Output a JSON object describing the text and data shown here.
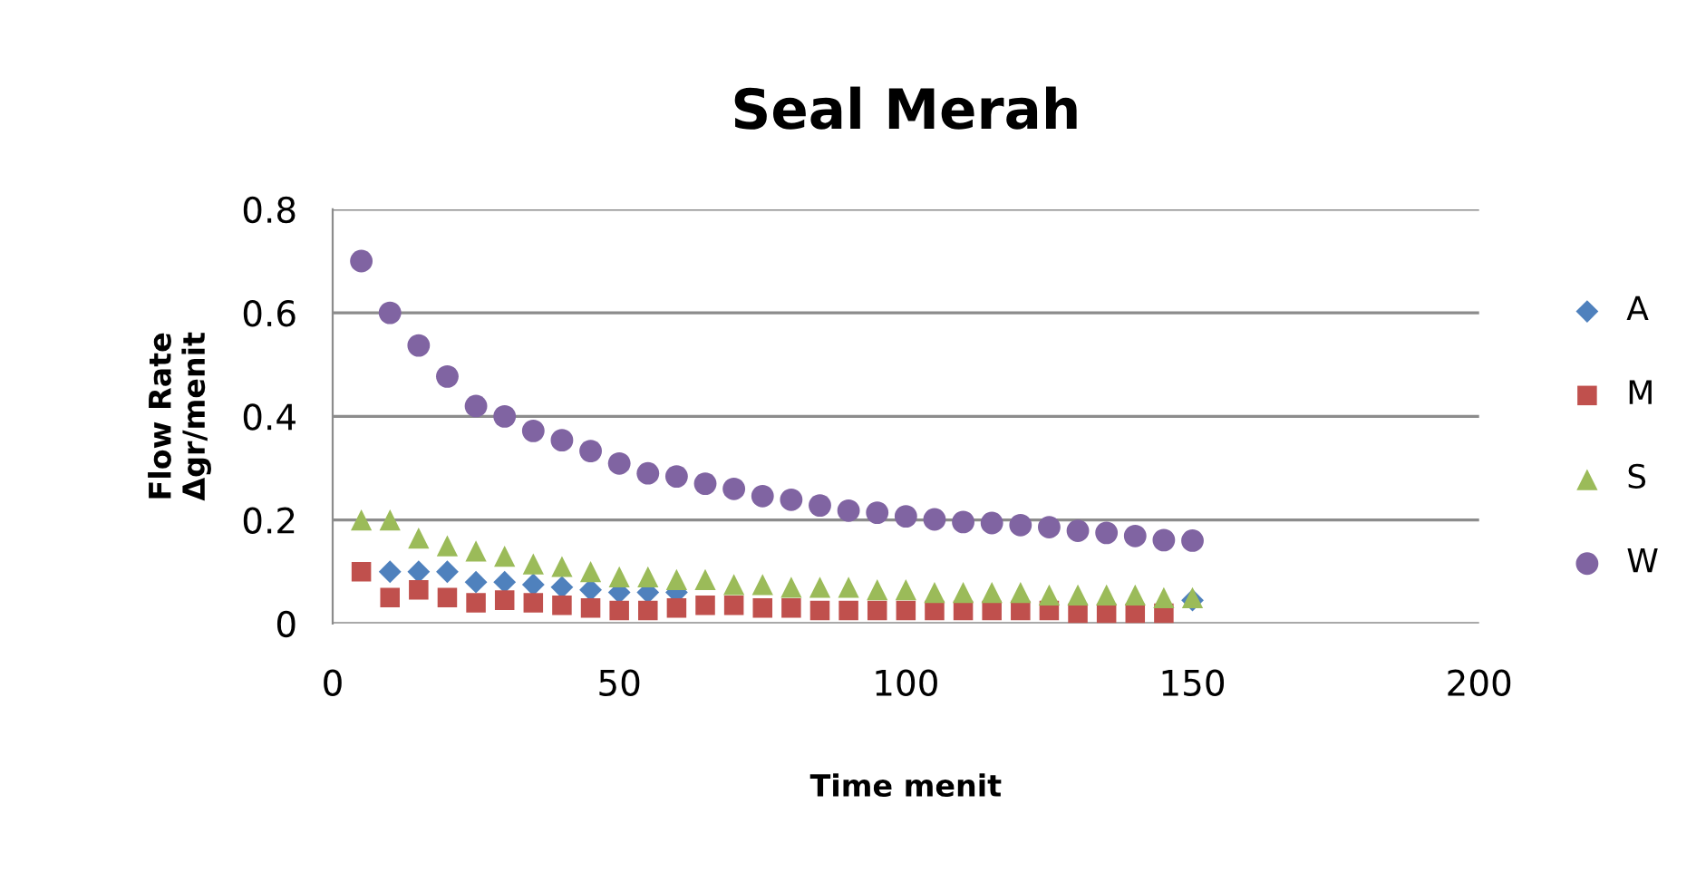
{
  "chart_data": {
    "type": "scatter",
    "title": "Seal Merah",
    "xlabel": "Time menit",
    "ylabel": "Flow Rate\nΔgr/menit",
    "xlim": [
      0,
      200
    ],
    "xticks": [
      0,
      50,
      100,
      150,
      200
    ],
    "ylim": [
      0,
      0.8
    ],
    "yticks": [
      0,
      0.2,
      0.4,
      0.6,
      0.8
    ],
    "grid": "y",
    "legend": "right",
    "series": [
      {
        "name": "A",
        "color": "#4f81bd",
        "marker": "diamond",
        "x": [
          10,
          15,
          20,
          25,
          30,
          35,
          40,
          45,
          50,
          55,
          60,
          65,
          70,
          75,
          80,
          85,
          90,
          95,
          100,
          105,
          110,
          115,
          120,
          125,
          130,
          135,
          140,
          145,
          150
        ],
        "values": [
          0.1,
          0.1,
          0.1,
          0.08,
          0.08,
          0.075,
          0.07,
          0.065,
          0.06,
          0.06,
          0.06,
          null,
          null,
          null,
          null,
          null,
          null,
          null,
          null,
          null,
          null,
          null,
          null,
          null,
          null,
          null,
          null,
          null,
          0.045
        ]
      },
      {
        "name": "M",
        "color": "#c0504d",
        "marker": "square",
        "x": [
          5,
          10,
          15,
          20,
          25,
          30,
          35,
          40,
          45,
          50,
          55,
          60,
          65,
          70,
          75,
          80,
          85,
          90,
          95,
          100,
          105,
          110,
          115,
          120,
          125,
          130,
          135,
          140,
          145
        ],
        "values": [
          0.1,
          0.05,
          0.065,
          0.05,
          0.04,
          0.045,
          0.04,
          0.035,
          0.03,
          0.025,
          0.025,
          0.03,
          0.035,
          0.035,
          0.03,
          0.03,
          0.025,
          0.025,
          0.025,
          0.025,
          0.025,
          0.025,
          0.025,
          0.025,
          0.025,
          0.02,
          0.02,
          0.02,
          0.02
        ]
      },
      {
        "name": "S",
        "color": "#9bbb59",
        "marker": "triangle",
        "x": [
          5,
          10,
          15,
          20,
          25,
          30,
          35,
          40,
          45,
          50,
          55,
          60,
          65,
          70,
          75,
          80,
          85,
          90,
          95,
          100,
          105,
          110,
          115,
          120,
          125,
          130,
          135,
          140,
          145,
          150
        ],
        "values": [
          0.2,
          0.2,
          0.165,
          0.15,
          0.14,
          0.13,
          0.115,
          0.11,
          0.1,
          0.09,
          0.09,
          0.085,
          0.085,
          0.075,
          0.075,
          0.07,
          0.07,
          0.07,
          0.065,
          0.065,
          0.06,
          0.06,
          0.06,
          0.06,
          0.055,
          0.055,
          0.055,
          0.055,
          0.05,
          0.05
        ]
      },
      {
        "name": "W",
        "color": "#8064a2",
        "marker": "circle",
        "x": [
          5,
          10,
          15,
          20,
          25,
          30,
          35,
          40,
          45,
          50,
          55,
          60,
          65,
          70,
          75,
          80,
          85,
          90,
          95,
          100,
          105,
          110,
          115,
          120,
          125,
          130,
          135,
          140,
          145,
          150
        ],
        "values": [
          0.7,
          0.6,
          0.537,
          0.477,
          0.42,
          0.4,
          0.372,
          0.354,
          0.333,
          0.309,
          0.29,
          0.284,
          0.27,
          0.26,
          0.246,
          0.239,
          0.228,
          0.218,
          0.214,
          0.207,
          0.201,
          0.196,
          0.194,
          0.19,
          0.186,
          0.179,
          0.175,
          0.169,
          0.161,
          0.16
        ]
      }
    ]
  }
}
